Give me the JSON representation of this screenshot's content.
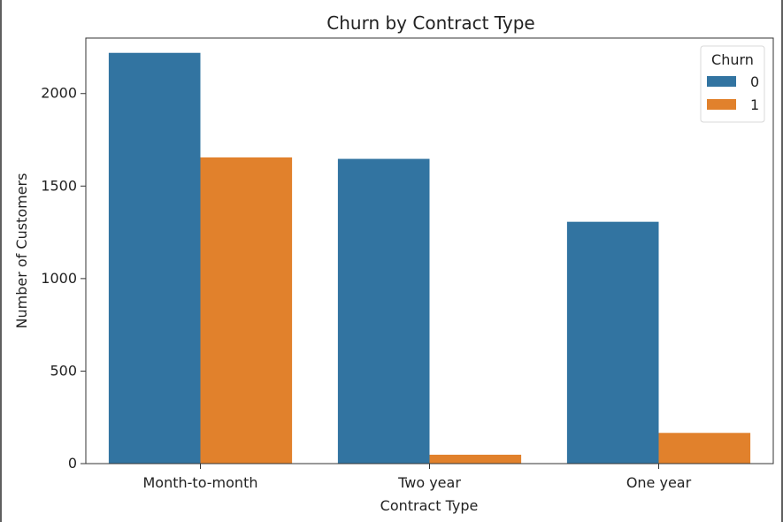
{
  "chart_data": {
    "type": "bar",
    "title": "Churn by Contract Type",
    "xlabel": "Contract Type",
    "ylabel": "Number of Customers",
    "categories": [
      "Month-to-month",
      "Two year",
      "One year"
    ],
    "series": [
      {
        "name": "0",
        "color": "#3274a1",
        "values": [
          2220,
          1647,
          1307
        ]
      },
      {
        "name": "1",
        "color": "#e1812c",
        "values": [
          1655,
          48,
          166
        ]
      }
    ],
    "ylim": [
      0,
      2300
    ],
    "yticks": [
      0,
      500,
      1000,
      1500,
      2000
    ],
    "legend": {
      "title": "Churn",
      "position": "top-right"
    },
    "grid": false
  }
}
